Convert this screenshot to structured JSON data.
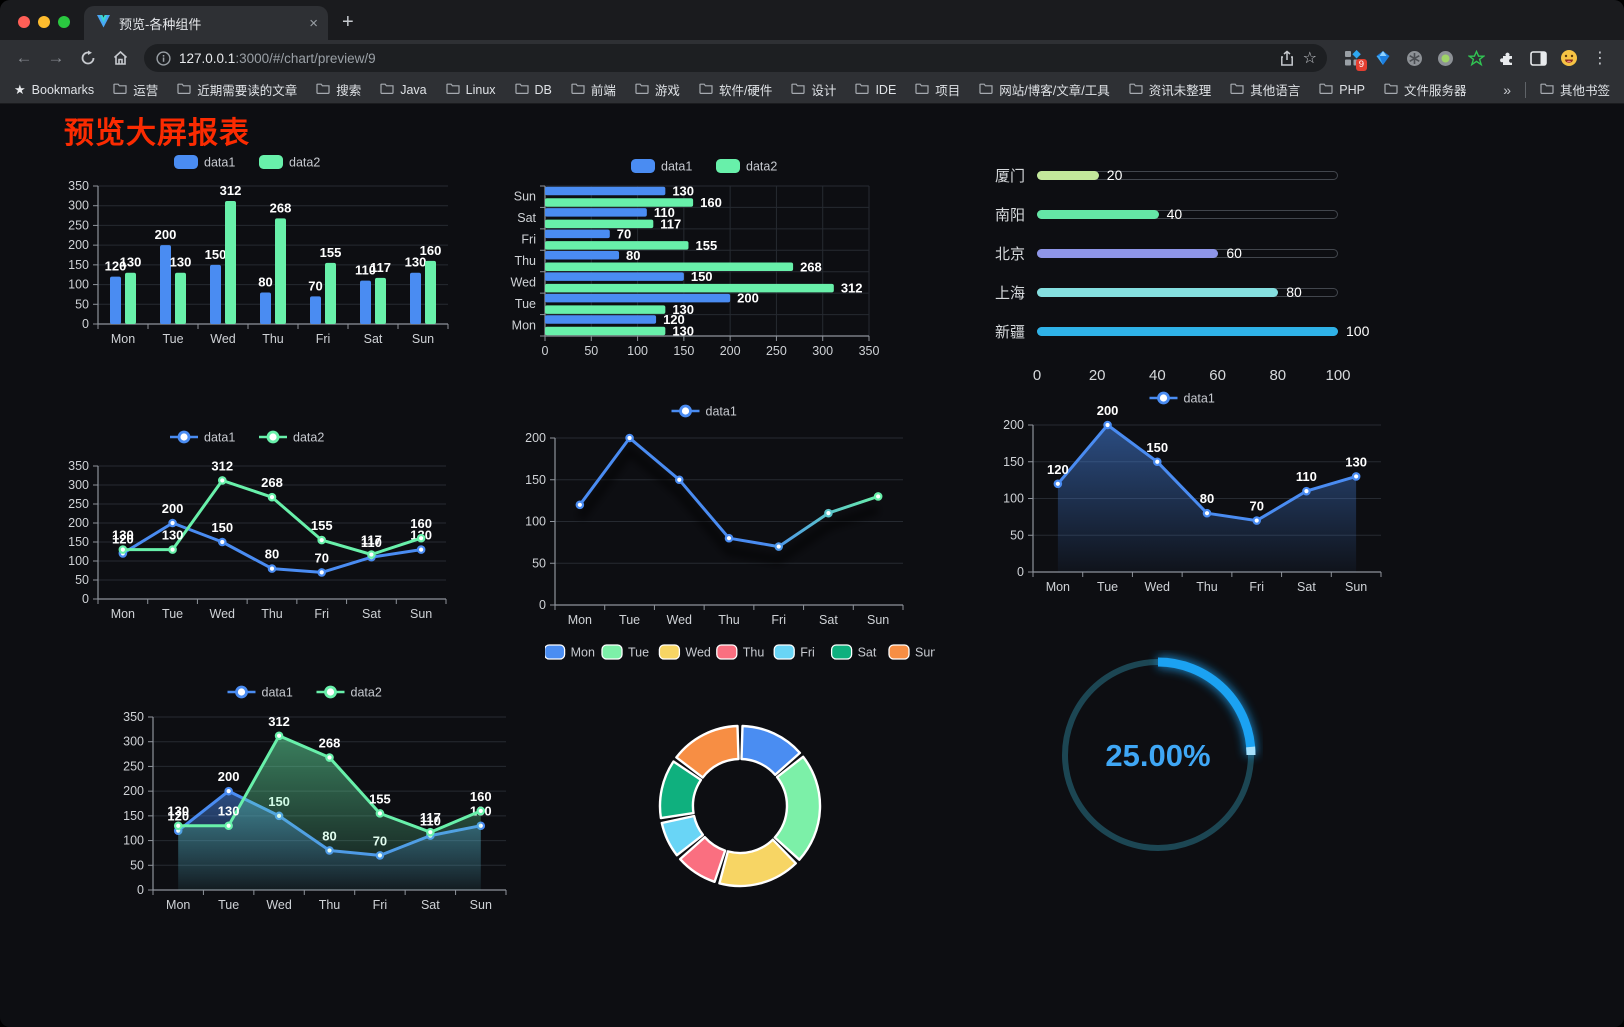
{
  "browser": {
    "traffic_lights": [
      "#ff5f57",
      "#febc2e",
      "#2ac840"
    ],
    "tab": {
      "title": "预览-各种组件",
      "close": "×"
    },
    "new_tab": "+",
    "url": {
      "host": "127.0.0.1",
      "rest": ":3000/#/chart/preview/9"
    },
    "extension_badge": "9",
    "bookmarks_bar": {
      "star_label": "Bookmarks",
      "folders": [
        "运营",
        "近期需要读的文章",
        "搜索",
        "Java",
        "Linux",
        "DB",
        "前端",
        "游戏",
        "软件/硬件",
        "设计",
        "IDE",
        "项目",
        "网站/博客/文章/工具",
        "资讯未整理",
        "其他语言",
        "PHP",
        "文件服务器"
      ],
      "overflow": "»",
      "other": "其他书签"
    }
  },
  "page": {
    "title": "预览大屏报表",
    "title_color": "#fb2b01",
    "bg": "#0d0e12"
  },
  "chart_data": [
    {
      "id": "grouped-bar",
      "type": "bar",
      "categories": [
        "Mon",
        "Tue",
        "Wed",
        "Thu",
        "Fri",
        "Sat",
        "Sun"
      ],
      "series": [
        {
          "name": "data1",
          "color": "#4a8cf2",
          "values": [
            120,
            200,
            150,
            80,
            70,
            110,
            130
          ]
        },
        {
          "name": "data2",
          "color": "#68f0aa",
          "values": [
            130,
            130,
            312,
            268,
            155,
            117,
            160
          ]
        }
      ],
      "ylim": [
        0,
        350
      ],
      "ystep": 50,
      "legend_position": "top",
      "grid": true
    },
    {
      "id": "horizontal-bar",
      "type": "bar",
      "horizontal": true,
      "categories": [
        "Mon",
        "Tue",
        "Wed",
        "Thu",
        "Fri",
        "Sat",
        "Sun"
      ],
      "display_order_top_to_bottom": [
        "Sun",
        "Sat",
        "Fri",
        "Thu",
        "Wed",
        "Tue",
        "Mon"
      ],
      "series": [
        {
          "name": "data1",
          "color": "#4a8cf2",
          "values": [
            120,
            200,
            150,
            80,
            70,
            110,
            130
          ]
        },
        {
          "name": "data2",
          "color": "#68f0aa",
          "values": [
            130,
            130,
            312,
            268,
            155,
            117,
            160
          ]
        }
      ],
      "xlim": [
        0,
        350
      ],
      "xstep": 50,
      "legend_position": "top",
      "grid": true
    },
    {
      "id": "progress-bars",
      "type": "bar",
      "horizontal": true,
      "items": [
        {
          "label": "厦门",
          "value": 20,
          "color": "#c3e89b"
        },
        {
          "label": "南阳",
          "value": 40,
          "color": "#64e6a6"
        },
        {
          "label": "北京",
          "value": 60,
          "color": "#8e95e8"
        },
        {
          "label": "上海",
          "value": 80,
          "color": "#85dfe0"
        },
        {
          "label": "新疆",
          "value": 100,
          "color": "#2fb2e8"
        }
      ],
      "xticks": [
        0,
        20,
        40,
        60,
        80,
        100
      ],
      "xlim": [
        0,
        100
      ]
    },
    {
      "id": "two-line",
      "type": "line",
      "categories": [
        "Mon",
        "Tue",
        "Wed",
        "Thu",
        "Fri",
        "Sat",
        "Sun"
      ],
      "series": [
        {
          "name": "data1",
          "color": "#4a8cf2",
          "values": [
            120,
            200,
            150,
            80,
            70,
            110,
            130
          ]
        },
        {
          "name": "data2",
          "color": "#68f0aa",
          "values": [
            130,
            130,
            312,
            268,
            155,
            117,
            160
          ]
        }
      ],
      "ylim": [
        0,
        350
      ],
      "ystep": 50,
      "legend_position": "top",
      "grid": true
    },
    {
      "id": "gradient-line",
      "type": "line",
      "categories": [
        "Mon",
        "Tue",
        "Wed",
        "Thu",
        "Fri",
        "Sat",
        "Sun"
      ],
      "series": [
        {
          "name": "data1",
          "color": "#4a8cf2",
          "color_end": "#68f0aa",
          "values": [
            120,
            200,
            150,
            80,
            70,
            110,
            130
          ]
        }
      ],
      "ylim": [
        0,
        200
      ],
      "ystep": 50,
      "legend_position": "top",
      "grid": true
    },
    {
      "id": "area-line",
      "type": "area",
      "categories": [
        "Mon",
        "Tue",
        "Wed",
        "Thu",
        "Fri",
        "Sat",
        "Sun"
      ],
      "series": [
        {
          "name": "data1",
          "color": "#4a8cf2",
          "values": [
            120,
            200,
            150,
            80,
            70,
            110,
            130
          ]
        }
      ],
      "ylim": [
        0,
        200
      ],
      "ystep": 50,
      "legend_position": "top",
      "grid": true
    },
    {
      "id": "two-area",
      "type": "area",
      "categories": [
        "Mon",
        "Tue",
        "Wed",
        "Thu",
        "Fri",
        "Sat",
        "Sun"
      ],
      "series": [
        {
          "name": "data1",
          "color": "#4a8cf2",
          "values": [
            120,
            200,
            150,
            80,
            70,
            110,
            130
          ]
        },
        {
          "name": "data2",
          "color": "#68f0aa",
          "values": [
            130,
            130,
            312,
            268,
            155,
            117,
            160
          ]
        }
      ],
      "ylim": [
        0,
        350
      ],
      "ystep": 50,
      "legend_position": "top",
      "grid": true
    },
    {
      "id": "donut",
      "type": "pie",
      "labels": [
        "Mon",
        "Tue",
        "Wed",
        "Thu",
        "Fri",
        "Sat",
        "Sun"
      ],
      "values": [
        120,
        200,
        150,
        80,
        70,
        110,
        130
      ],
      "colors": [
        "#4a8df2",
        "#7cf0a8",
        "#f7d564",
        "#fa6f80",
        "#69d5f6",
        "#0fb07e",
        "#f78e44"
      ],
      "legend_position": "top"
    },
    {
      "id": "gauge",
      "type": "gauge",
      "value": 25,
      "display": "25.00%",
      "color": "#1ba2f2",
      "track_color": "#1c4653",
      "text_color": "#3fa7f5"
    }
  ]
}
